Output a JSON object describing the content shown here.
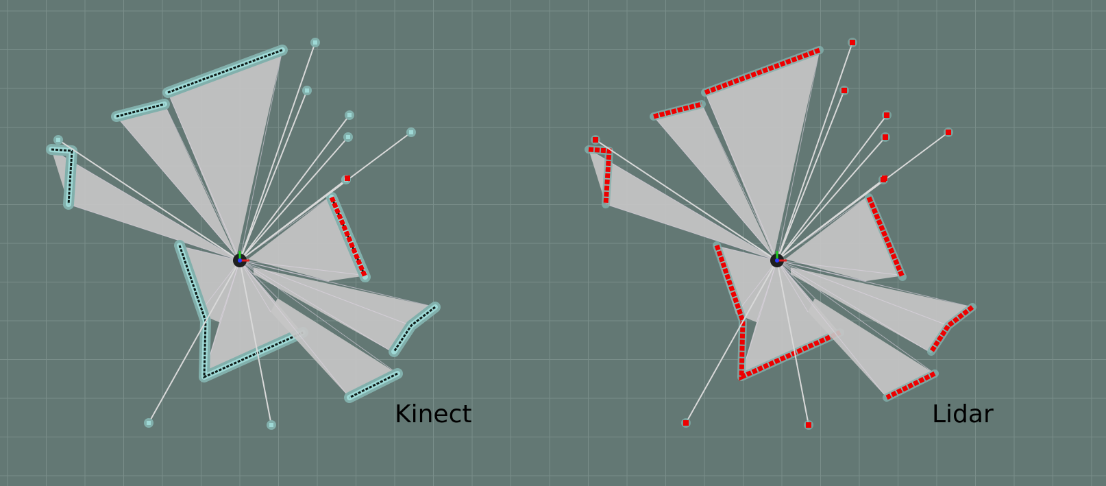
{
  "view": {
    "background": "#637874",
    "grid_color": "#7a8e8a"
  },
  "panels": [
    {
      "id": "kinect",
      "label": "Kinect",
      "obstacle_style": "inflated-dark",
      "colors": {
        "scan": "#c6c6c6",
        "obstacle": "#0d1a17",
        "inflation": "#9fd9d6",
        "halo": "#82b0ac",
        "marker": "#ee0000"
      }
    },
    {
      "id": "lidar",
      "label": "Lidar",
      "obstacle_style": "red-points",
      "colors": {
        "scan": "#c6c6c6",
        "obstacle": "#ee0000",
        "inflation": "#b6e2df",
        "halo": "#82b0ac",
        "marker": "#ee0000"
      }
    }
  ],
  "robot": {
    "colors": {
      "body": "#1f1f1f",
      "x_axis": "#e01e1e",
      "y_axis": "#22cc22",
      "z_axis": "#2a3cff"
    }
  }
}
